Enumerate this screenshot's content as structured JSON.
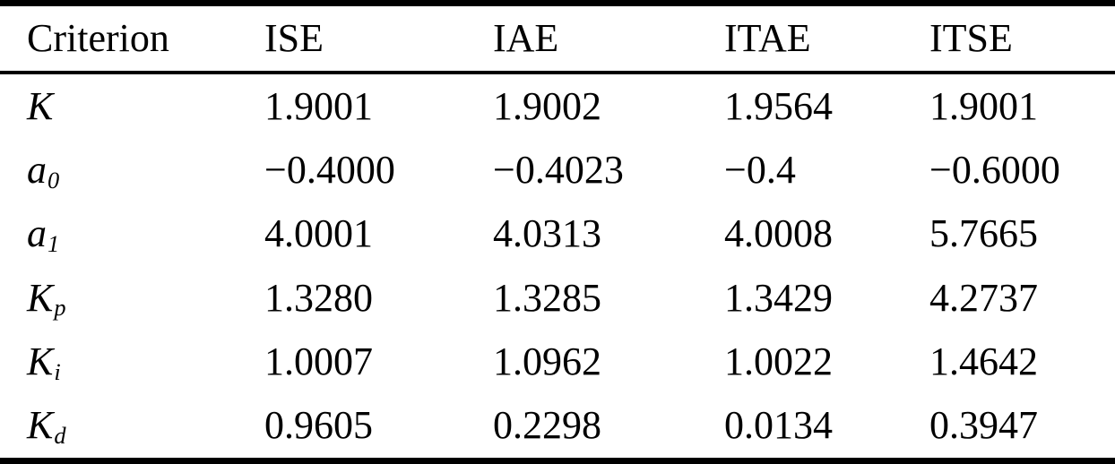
{
  "table": {
    "background_color": "#ffffff",
    "text_color": "#000000",
    "rule_color": "#000000",
    "columns": {
      "criterion": "Criterion",
      "ise": "ISE",
      "iae": "IAE",
      "itae": "ITAE",
      "itse": "ITSE"
    },
    "rows": [
      {
        "label": {
          "base": "K",
          "sub": ""
        },
        "values": [
          "1.9001",
          "1.9002",
          "1.9564",
          "1.9001"
        ]
      },
      {
        "label": {
          "base": "a",
          "sub": "0"
        },
        "values": [
          "−0.4000",
          "−0.4023",
          "−0.4",
          "−0.6000"
        ]
      },
      {
        "label": {
          "base": "a",
          "sub": "1"
        },
        "values": [
          "4.0001",
          "4.0313",
          "4.0008",
          "5.7665"
        ]
      },
      {
        "label": {
          "base": "K",
          "sub": "p"
        },
        "values": [
          "1.3280",
          "1.3285",
          "1.3429",
          "4.2737"
        ]
      },
      {
        "label": {
          "base": "K",
          "sub": "i"
        },
        "values": [
          "1.0007",
          "1.0962",
          "1.0022",
          "1.4642"
        ]
      },
      {
        "label": {
          "base": "K",
          "sub": "d"
        },
        "values": [
          "0.9605",
          "0.2298",
          "0.0134",
          "0.3947"
        ]
      }
    ]
  }
}
